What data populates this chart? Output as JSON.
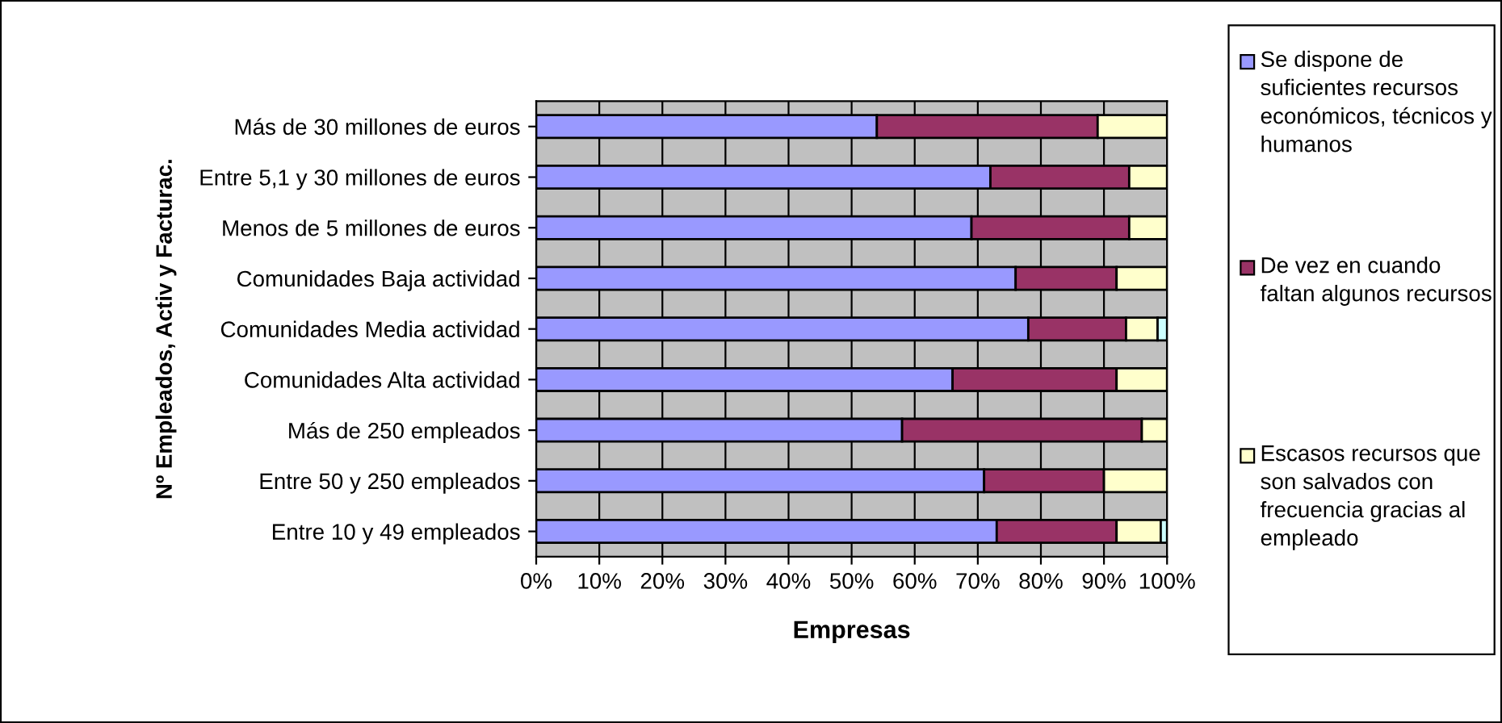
{
  "chart_data": {
    "type": "bar",
    "orientation": "horizontal",
    "stacked": true,
    "xlabel": "Empresas",
    "ylabel": "Nº Empleados, Activ y Facturac.",
    "categories": [
      "Más de 30 millones de euros",
      "Entre 5,1 y 30 millones de euros",
      "Menos de 5 millones de euros",
      "Comunidades Baja actividad",
      "Comunidades Media actividad",
      "Comunidades Alta actividad",
      "Más de 250 empleados",
      "Entre 50 y 250 empleados",
      "Entre 10 y 49 empleados"
    ],
    "series": [
      {
        "name": "Se dispone de suficientes recursos económicos, técnicos y humanos",
        "color": "#9999ff",
        "values": [
          54,
          72,
          69,
          76,
          78,
          66,
          58,
          71,
          73
        ]
      },
      {
        "name": "De vez en cuando faltan algunos recursos",
        "color": "#993366",
        "values": [
          35,
          22,
          25,
          16,
          15.5,
          26,
          38,
          19,
          19
        ]
      },
      {
        "name": "Escasos recursos que son salvados con frecuencia gracias al empleado",
        "color": "#ffffcc",
        "values": [
          11,
          6,
          6,
          8,
          5,
          8,
          4,
          10,
          7
        ]
      },
      {
        "color": "#ccffff",
        "values": [
          null,
          null,
          null,
          null,
          1.5,
          null,
          null,
          null,
          1
        ]
      }
    ],
    "xlim": [
      0,
      100
    ],
    "xticks": [
      {
        "value": 0,
        "label": "0%"
      },
      {
        "value": 10,
        "label": "10%"
      },
      {
        "value": 20,
        "label": "20%"
      },
      {
        "value": 30,
        "label": "30%"
      },
      {
        "value": 40,
        "label": "40%"
      },
      {
        "value": 50,
        "label": "50%"
      },
      {
        "value": 60,
        "label": "60%"
      },
      {
        "value": 70,
        "label": "70%"
      },
      {
        "value": 80,
        "label": "80%"
      },
      {
        "value": 90,
        "label": "90%"
      },
      {
        "value": 100,
        "label": "100%"
      }
    ],
    "grid": "x",
    "legend": "right"
  }
}
